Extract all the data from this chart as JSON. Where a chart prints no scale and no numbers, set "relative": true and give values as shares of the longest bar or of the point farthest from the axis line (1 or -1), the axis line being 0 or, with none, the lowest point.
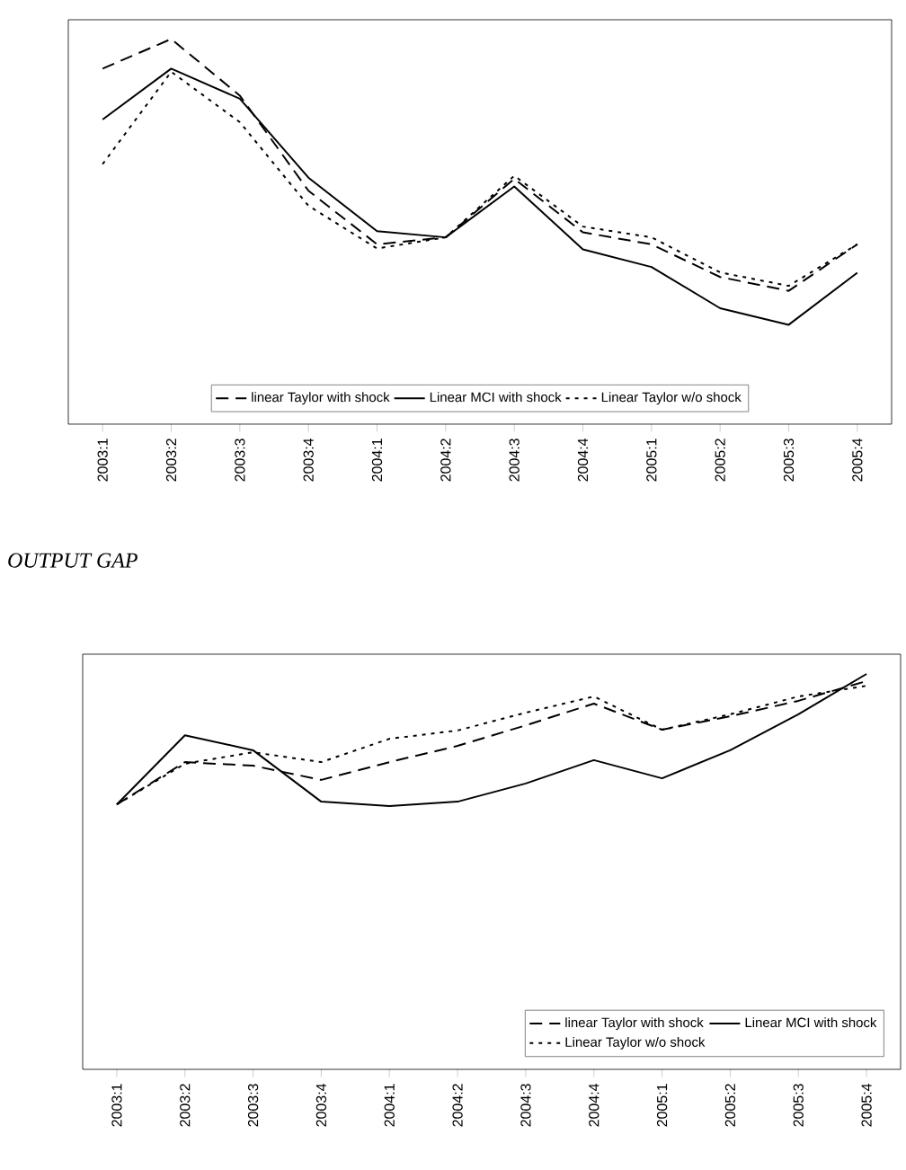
{
  "chart_data": [
    {
      "type": "line",
      "relative": true,
      "legend": "bottom",
      "categories": [
        "2003:1",
        "2003:2",
        "2003:3",
        "2003:4",
        "2004:1",
        "2004:2",
        "2004:3",
        "2004:4",
        "2005:1",
        "2005:2",
        "2005:3",
        "2005:4"
      ],
      "series": [
        {
          "name": "linear Taylor with shock",
          "color": "#000000",
          "line_style": "dashed",
          "values": [
            0.923,
            1,
            0.853,
            0.606,
            0.467,
            0.485,
            0.637,
            0.498,
            0.467,
            0.382,
            0.346,
            0.467
          ]
        },
        {
          "name": "Linear MCI with shock",
          "color": "#000000",
          "line_style": "solid",
          "values": [
            0.791,
            0.923,
            0.845,
            0.64,
            0.501,
            0.485,
            0.617,
            0.454,
            0.408,
            0.301,
            0.258,
            0.393
          ]
        },
        {
          "name": "Linear Taylor w/o shock",
          "color": "#000000",
          "line_style": "dotted",
          "values": [
            0.675,
            0.915,
            0.784,
            0.567,
            0.456,
            0.485,
            0.645,
            0.513,
            0.485,
            0.394,
            0.359,
            0.467
          ]
        }
      ]
    },
    {
      "type": "line",
      "relative": true,
      "legend": "bottom right",
      "title": "OUTPUT GAP",
      "categories": [
        "2003:1",
        "2003:2",
        "2003:3",
        "2003:4",
        "2004:1",
        "2004:2",
        "2004:3",
        "2004:4",
        "2005:1",
        "2005:2",
        "2005:3",
        "2005:4"
      ],
      "series": [
        {
          "name": "linear Taylor with shock",
          "color": "#000000",
          "line_style": "dashed",
          "values": [
            0.67,
            0.777,
            0.768,
            0.732,
            0.777,
            0.818,
            0.87,
            0.925,
            0.859,
            0.893,
            0.932,
            0.982
          ]
        },
        {
          "name": "Linear MCI with shock",
          "color": "#000000",
          "line_style": "solid",
          "values": [
            0.67,
            0.845,
            0.807,
            0.677,
            0.666,
            0.677,
            0.723,
            0.782,
            0.736,
            0.807,
            0.898,
            1
          ]
        },
        {
          "name": "Linear Taylor w/o shock",
          "color": "#000000",
          "line_style": "dotted",
          "values": [
            0.67,
            0.773,
            0.802,
            0.777,
            0.836,
            0.857,
            0.902,
            0.943,
            0.859,
            0.898,
            0.943,
            0.97
          ]
        }
      ]
    }
  ]
}
